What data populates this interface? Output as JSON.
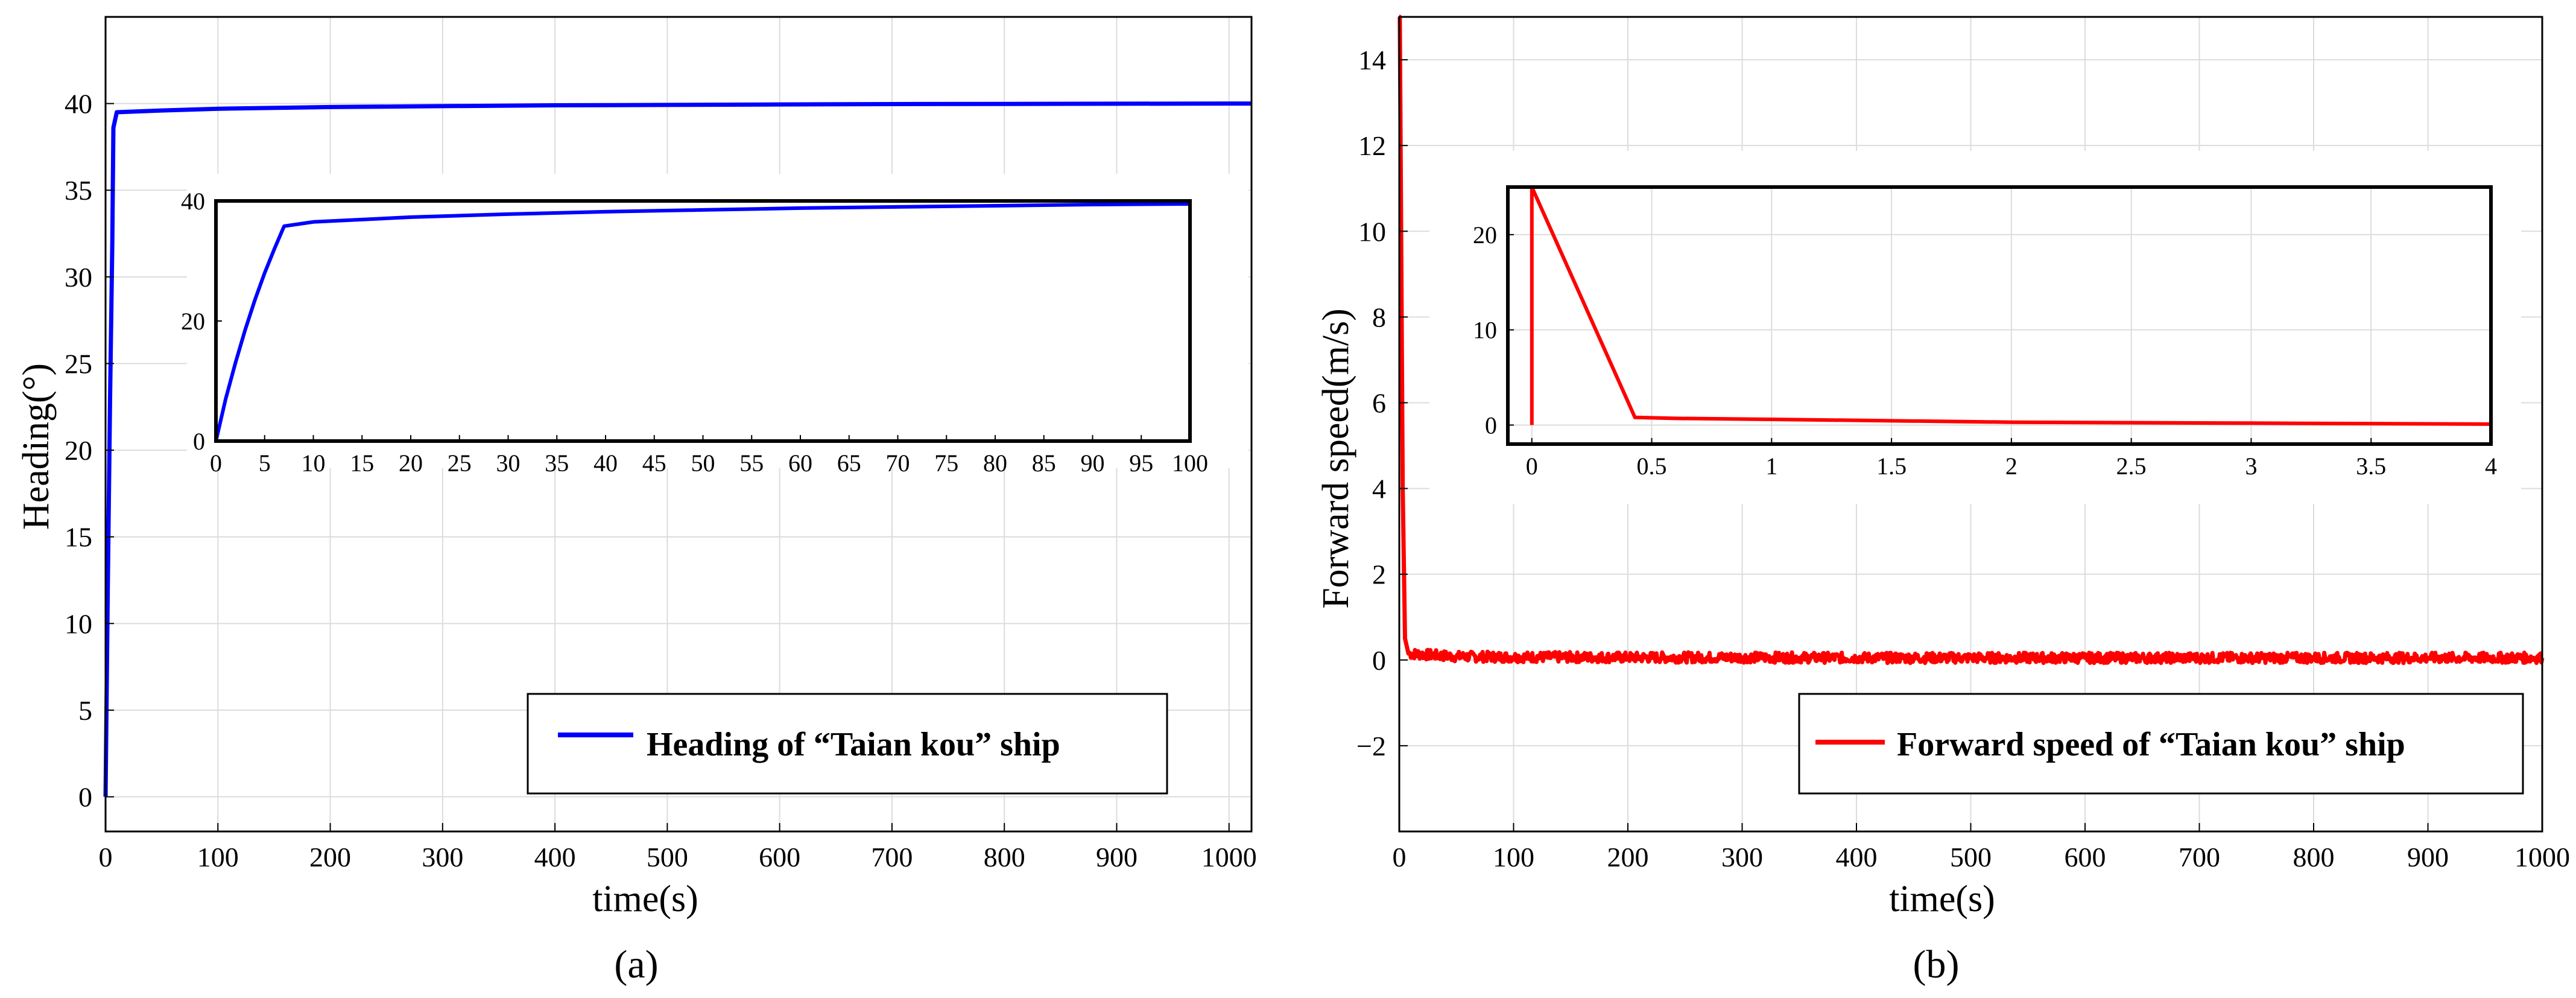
{
  "chart_data": [
    {
      "type": "line",
      "panel": "(a)",
      "xlabel": "time(s)",
      "ylabel": "Heading(°)",
      "xlim": [
        0,
        1020
      ],
      "ylim": [
        -2,
        45
      ],
      "xticks": [
        0,
        100,
        200,
        300,
        400,
        500,
        600,
        700,
        800,
        900,
        1000
      ],
      "yticks": [
        0,
        5,
        10,
        15,
        20,
        25,
        30,
        35,
        40
      ],
      "grid": true,
      "legend": "bottom-right",
      "series": [
        {
          "name": "Heading of “Taian kou” ship",
          "color": "#0000ff",
          "x": [
            0,
            2,
            4,
            6,
            7,
            10,
            50,
            100,
            200,
            300,
            400,
            500,
            600,
            700,
            800,
            900,
            1000,
            1020
          ],
          "y": [
            0,
            12,
            23,
            32,
            38.6,
            39.5,
            39.6,
            39.7,
            39.8,
            39.85,
            39.9,
            39.92,
            39.95,
            39.97,
            39.98,
            39.99,
            40,
            40
          ]
        }
      ],
      "inset": {
        "xlim": [
          0,
          100
        ],
        "ylim": [
          0,
          40
        ],
        "xticks": [
          0,
          5,
          10,
          15,
          20,
          25,
          30,
          35,
          40,
          45,
          50,
          55,
          60,
          65,
          70,
          75,
          80,
          85,
          90,
          95,
          100
        ],
        "yticks": [
          0,
          20,
          40
        ],
        "x": [
          0,
          1,
          2,
          3,
          4,
          5,
          6,
          7,
          10,
          20,
          30,
          40,
          50,
          60,
          70,
          80,
          90,
          100
        ],
        "y": [
          0,
          7,
          13,
          18.5,
          23.5,
          28,
          32,
          35.8,
          36.5,
          37.3,
          37.8,
          38.2,
          38.5,
          38.8,
          39,
          39.2,
          39.4,
          39.5
        ]
      }
    },
    {
      "type": "line",
      "panel": "(b)",
      "xlabel": "time(s)",
      "ylabel": "Forward speed(m/s)",
      "xlim": [
        0,
        1000
      ],
      "ylim": [
        -4,
        15
      ],
      "xticks": [
        0,
        100,
        200,
        300,
        400,
        500,
        600,
        700,
        800,
        900,
        1000
      ],
      "yticks": [
        -2,
        0,
        2,
        4,
        6,
        8,
        10,
        12,
        14
      ],
      "grid": true,
      "legend": "bottom-right",
      "series": [
        {
          "name": "Forward speed of “Taian kou” ship",
          "color": "#ff0000",
          "x": [
            0,
            0.5,
            3,
            5,
            8,
            50,
            100,
            200,
            300,
            400,
            500,
            600,
            700,
            800,
            900,
            1000
          ],
          "y": [
            15,
            15,
            4,
            0.5,
            0.15,
            0.08,
            0.07,
            0.06,
            0.06,
            0.05,
            0.05,
            0.05,
            0.05,
            0.05,
            0.05,
            0.05
          ],
          "noise_amplitude": 0.12
        }
      ],
      "inset": {
        "xlim": [
          -0.1,
          4
        ],
        "ylim": [
          -2,
          25
        ],
        "xticks": [
          0,
          0.5,
          1,
          1.5,
          2,
          2.5,
          3,
          3.5,
          4
        ],
        "xtick_labels": [
          "0",
          "0.5",
          "1",
          "1.5",
          "2",
          "2.5",
          "3",
          "3.5",
          "4"
        ],
        "yticks": [
          0,
          10,
          20
        ],
        "x": [
          0,
          0,
          0.4,
          0.43,
          0.6,
          1,
          2,
          3,
          4
        ],
        "y": [
          0,
          25,
          2.5,
          0.8,
          0.7,
          0.6,
          0.3,
          0.2,
          0.1
        ]
      }
    }
  ]
}
